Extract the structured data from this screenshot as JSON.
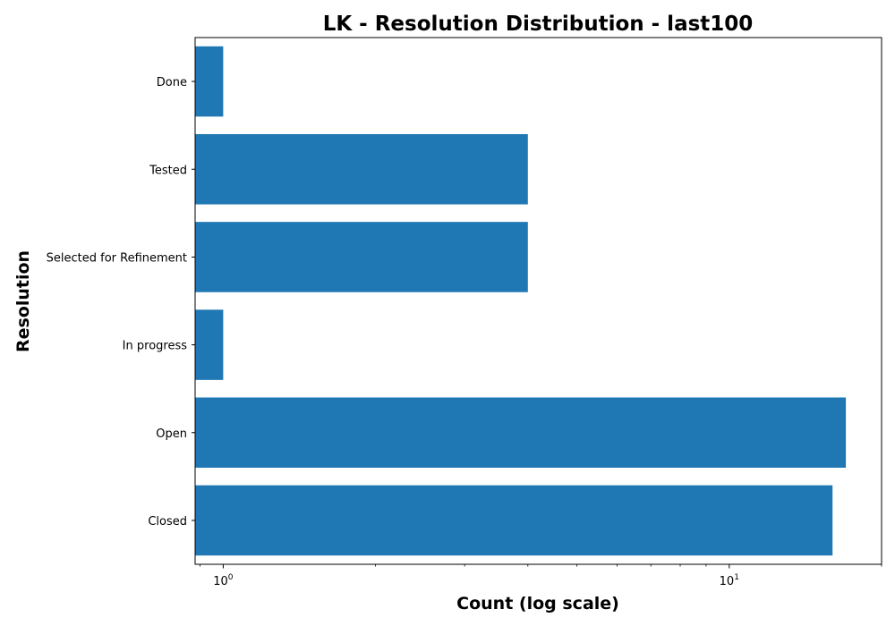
{
  "chart_data": {
    "type": "bar",
    "orientation": "horizontal",
    "title": "LK - Resolution Distribution - last100",
    "xlabel": "Count (log scale)",
    "ylabel": "Resolution",
    "x_scale": "log",
    "xlim": [
      0.88,
      20
    ],
    "categories": [
      "Closed",
      "Open",
      "In progress",
      "Selected for Refinement",
      "Tested",
      "Done"
    ],
    "values": [
      16,
      17,
      1,
      4,
      4,
      1
    ],
    "x_ticks": [
      {
        "base": "10",
        "exponent": "0",
        "value": 1
      },
      {
        "base": "10",
        "exponent": "1",
        "value": 10
      }
    ],
    "bar_color": "#1f77b4",
    "grid": false,
    "legend": "none"
  }
}
